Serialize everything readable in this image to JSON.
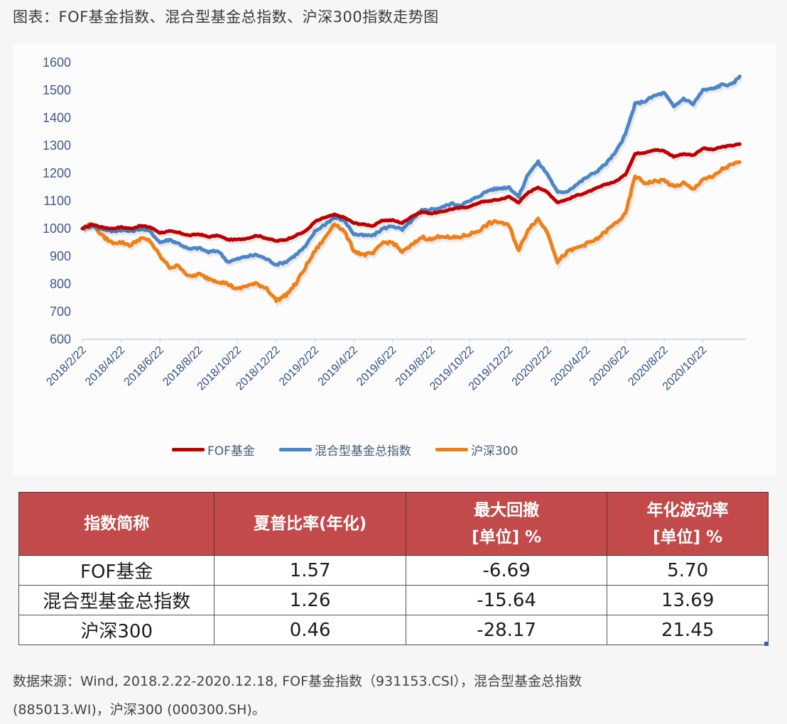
{
  "figure_title": "图表：FOF基金指数、混合型基金总指数、沪深300指数走势图",
  "legend": [
    {
      "label": "FOF基金",
      "color": "#c00000"
    },
    {
      "label": "混合型基金总指数",
      "color": "#4a86c8"
    },
    {
      "label": "沪深300",
      "color": "#f07f16"
    }
  ],
  "table": {
    "headers": [
      {
        "line1": "指数简称",
        "line2": ""
      },
      {
        "line1": "夏普比率(年化)",
        "line2": ""
      },
      {
        "line1": "最大回撤",
        "line2": "[单位] %"
      },
      {
        "line1": "年化波动率",
        "line2": "[单位] %"
      }
    ],
    "rows": [
      {
        "name": "FOF基金",
        "sharpe": "1.57",
        "max_drawdown": "-6.69",
        "volatility": "5.70"
      },
      {
        "name": "混合型基金总指数",
        "sharpe": "1.26",
        "max_drawdown": "-15.64",
        "volatility": "13.69"
      },
      {
        "name": "沪深300",
        "sharpe": "0.46",
        "max_drawdown": "-28.17",
        "volatility": "21.45"
      }
    ]
  },
  "source_note": {
    "line1": "数据来源：Wind, 2018.2.22-2020.12.18, FOF基金指数（931153.CSI），混合型基金总指数",
    "line2": "(885013.WI)，沪深300 (000300.SH)。"
  },
  "chart_data": {
    "type": "line",
    "title": "FOF基金指数、混合型基金总指数、沪深300指数走势图",
    "xlabel": "",
    "ylabel": "",
    "ylim": [
      600,
      1600
    ],
    "yticks": [
      600,
      700,
      800,
      900,
      1000,
      1100,
      1200,
      1300,
      1400,
      1500,
      1600
    ],
    "xtick_labels": [
      "2018/2/22",
      "2018/4/22",
      "2018/6/22",
      "2018/8/22",
      "2018/10/22",
      "2018/12/22",
      "2019/2/22",
      "2019/4/22",
      "2019/6/22",
      "2019/8/22",
      "2019/10/22",
      "2019/12/22",
      "2020/2/22",
      "2020/4/22",
      "2020/6/22",
      "2020/8/22",
      "2020/10/22"
    ],
    "grid": false,
    "legend_position": "bottom",
    "x_months_from_start": [
      0,
      0.5,
      1,
      1.5,
      2,
      2.5,
      3,
      3.5,
      4,
      4.5,
      5,
      5.5,
      6,
      6.5,
      7,
      7.5,
      8,
      8.5,
      9,
      9.5,
      10,
      10.5,
      11,
      11.5,
      12,
      12.5,
      13,
      13.5,
      14,
      14.5,
      15,
      15.5,
      16,
      16.5,
      17,
      17.5,
      18,
      18.5,
      19,
      19.5,
      20,
      20.5,
      21,
      21.5,
      22,
      22.5,
      23,
      23.5,
      24,
      24.5,
      25,
      25.5,
      26,
      26.5,
      27,
      27.5,
      28,
      28.5,
      29,
      29.5,
      30,
      30.5,
      31,
      31.5,
      32,
      32.5,
      33,
      33.5,
      33.9
    ],
    "series": [
      {
        "name": "FOF基金",
        "color": "#c00000",
        "values": [
          1000,
          1015,
          1005,
          1000,
          1005,
          1000,
          1010,
          1005,
          985,
          990,
          985,
          975,
          980,
          970,
          975,
          960,
          960,
          965,
          975,
          965,
          955,
          960,
          975,
          990,
          1025,
          1040,
          1050,
          1040,
          1020,
          1015,
          1010,
          1030,
          1030,
          1020,
          1045,
          1060,
          1055,
          1060,
          1070,
          1075,
          1080,
          1095,
          1100,
          1105,
          1115,
          1095,
          1130,
          1150,
          1130,
          1095,
          1105,
          1120,
          1130,
          1145,
          1160,
          1170,
          1195,
          1270,
          1275,
          1285,
          1280,
          1260,
          1270,
          1265,
          1290,
          1285,
          1295,
          1300,
          1305
        ]
      },
      {
        "name": "混合型基金总指数",
        "color": "#4a86c8",
        "values": [
          1000,
          1010,
          1000,
          990,
          995,
          990,
          1000,
          990,
          950,
          960,
          945,
          925,
          930,
          915,
          920,
          880,
          890,
          900,
          905,
          890,
          870,
          880,
          905,
          935,
          990,
          1015,
          1040,
          1030,
          980,
          975,
          975,
          1000,
          1010,
          995,
          1030,
          1065,
          1070,
          1075,
          1090,
          1085,
          1100,
          1120,
          1140,
          1145,
          1150,
          1115,
          1200,
          1240,
          1195,
          1130,
          1135,
          1160,
          1185,
          1205,
          1235,
          1275,
          1340,
          1450,
          1460,
          1480,
          1490,
          1440,
          1470,
          1450,
          1500,
          1505,
          1520,
          1520,
          1550
        ]
      },
      {
        "name": "沪深300",
        "color": "#f07f16",
        "values": [
          1000,
          1020,
          975,
          950,
          950,
          940,
          965,
          955,
          900,
          860,
          865,
          825,
          835,
          820,
          810,
          800,
          780,
          795,
          800,
          785,
          740,
          760,
          800,
          860,
          920,
          965,
          1020,
          990,
          920,
          905,
          910,
          950,
          950,
          915,
          940,
          970,
          960,
          975,
          965,
          970,
          980,
          995,
          1020,
          1025,
          1010,
          920,
          1000,
          1035,
          985,
          880,
          915,
          930,
          945,
          960,
          990,
          1020,
          1050,
          1190,
          1165,
          1170,
          1175,
          1150,
          1165,
          1140,
          1180,
          1185,
          1215,
          1230,
          1240
        ]
      }
    ]
  }
}
